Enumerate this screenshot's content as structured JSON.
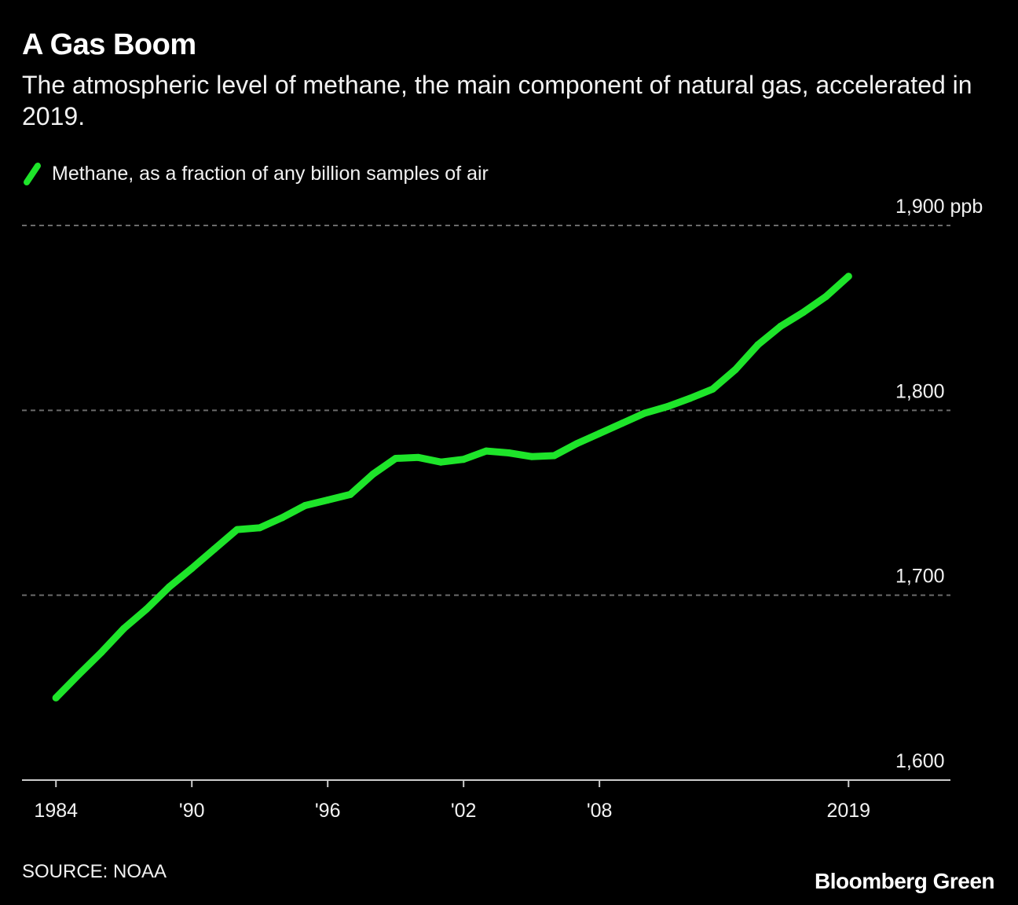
{
  "chart_data": {
    "type": "line",
    "title": "A Gas Boom",
    "subtitle": "The atmospheric level of methane, the main component of natural gas, accelerated in 2019.",
    "legend": "Methane, as a fraction of any billion samples of air",
    "series": [
      {
        "name": "Methane, as a fraction of any billion samples of air",
        "color": "#1ee52a",
        "x": [
          1984,
          1985,
          1986,
          1987,
          1988,
          1989,
          1990,
          1991,
          1992,
          1993,
          1994,
          1995,
          1996,
          1997,
          1998,
          1999,
          2000,
          2001,
          2002,
          2003,
          2004,
          2005,
          2006,
          2007,
          2008,
          2009,
          2010,
          2011,
          2012,
          2013,
          2014,
          2015,
          2016,
          2017,
          2018,
          2019
        ],
        "values": [
          1644.5,
          1657.0,
          1669.0,
          1682.0,
          1692.5,
          1704.5,
          1714.5,
          1725.0,
          1735.5,
          1736.5,
          1742.0,
          1748.5,
          1751.5,
          1754.5,
          1765.5,
          1774.0,
          1774.5,
          1772.0,
          1773.5,
          1778.0,
          1777.0,
          1775.0,
          1775.5,
          1782.0,
          1787.5,
          1793.0,
          1798.5,
          1802.0,
          1806.5,
          1811.5,
          1822.0,
          1835.5,
          1845.5,
          1853.0,
          1861.5,
          1872.5
        ]
      }
    ],
    "xticks": [
      {
        "value": 1984,
        "label": "1984"
      },
      {
        "value": 1990,
        "label": "'90"
      },
      {
        "value": 1996,
        "label": "'96"
      },
      {
        "value": 2002,
        "label": "'02"
      },
      {
        "value": 2008,
        "label": "'08"
      },
      {
        "value": 2019,
        "label": "2019"
      }
    ],
    "yticks": [
      {
        "value": 1600,
        "label": "1,600"
      },
      {
        "value": 1700,
        "label": "1,700"
      },
      {
        "value": 1800,
        "label": "1,800"
      },
      {
        "value": 1900,
        "label": "1,900 ppb"
      }
    ],
    "xlim": [
      1982.5,
      2023.5
    ],
    "ylim": [
      1600,
      1900
    ],
    "xlabel": "",
    "ylabel": "ppb",
    "grid": true,
    "gridline_color": "#6b6b6b",
    "axis_color": "#cccccc"
  },
  "source": "SOURCE: NOAA",
  "brand": "Bloomberg Green"
}
